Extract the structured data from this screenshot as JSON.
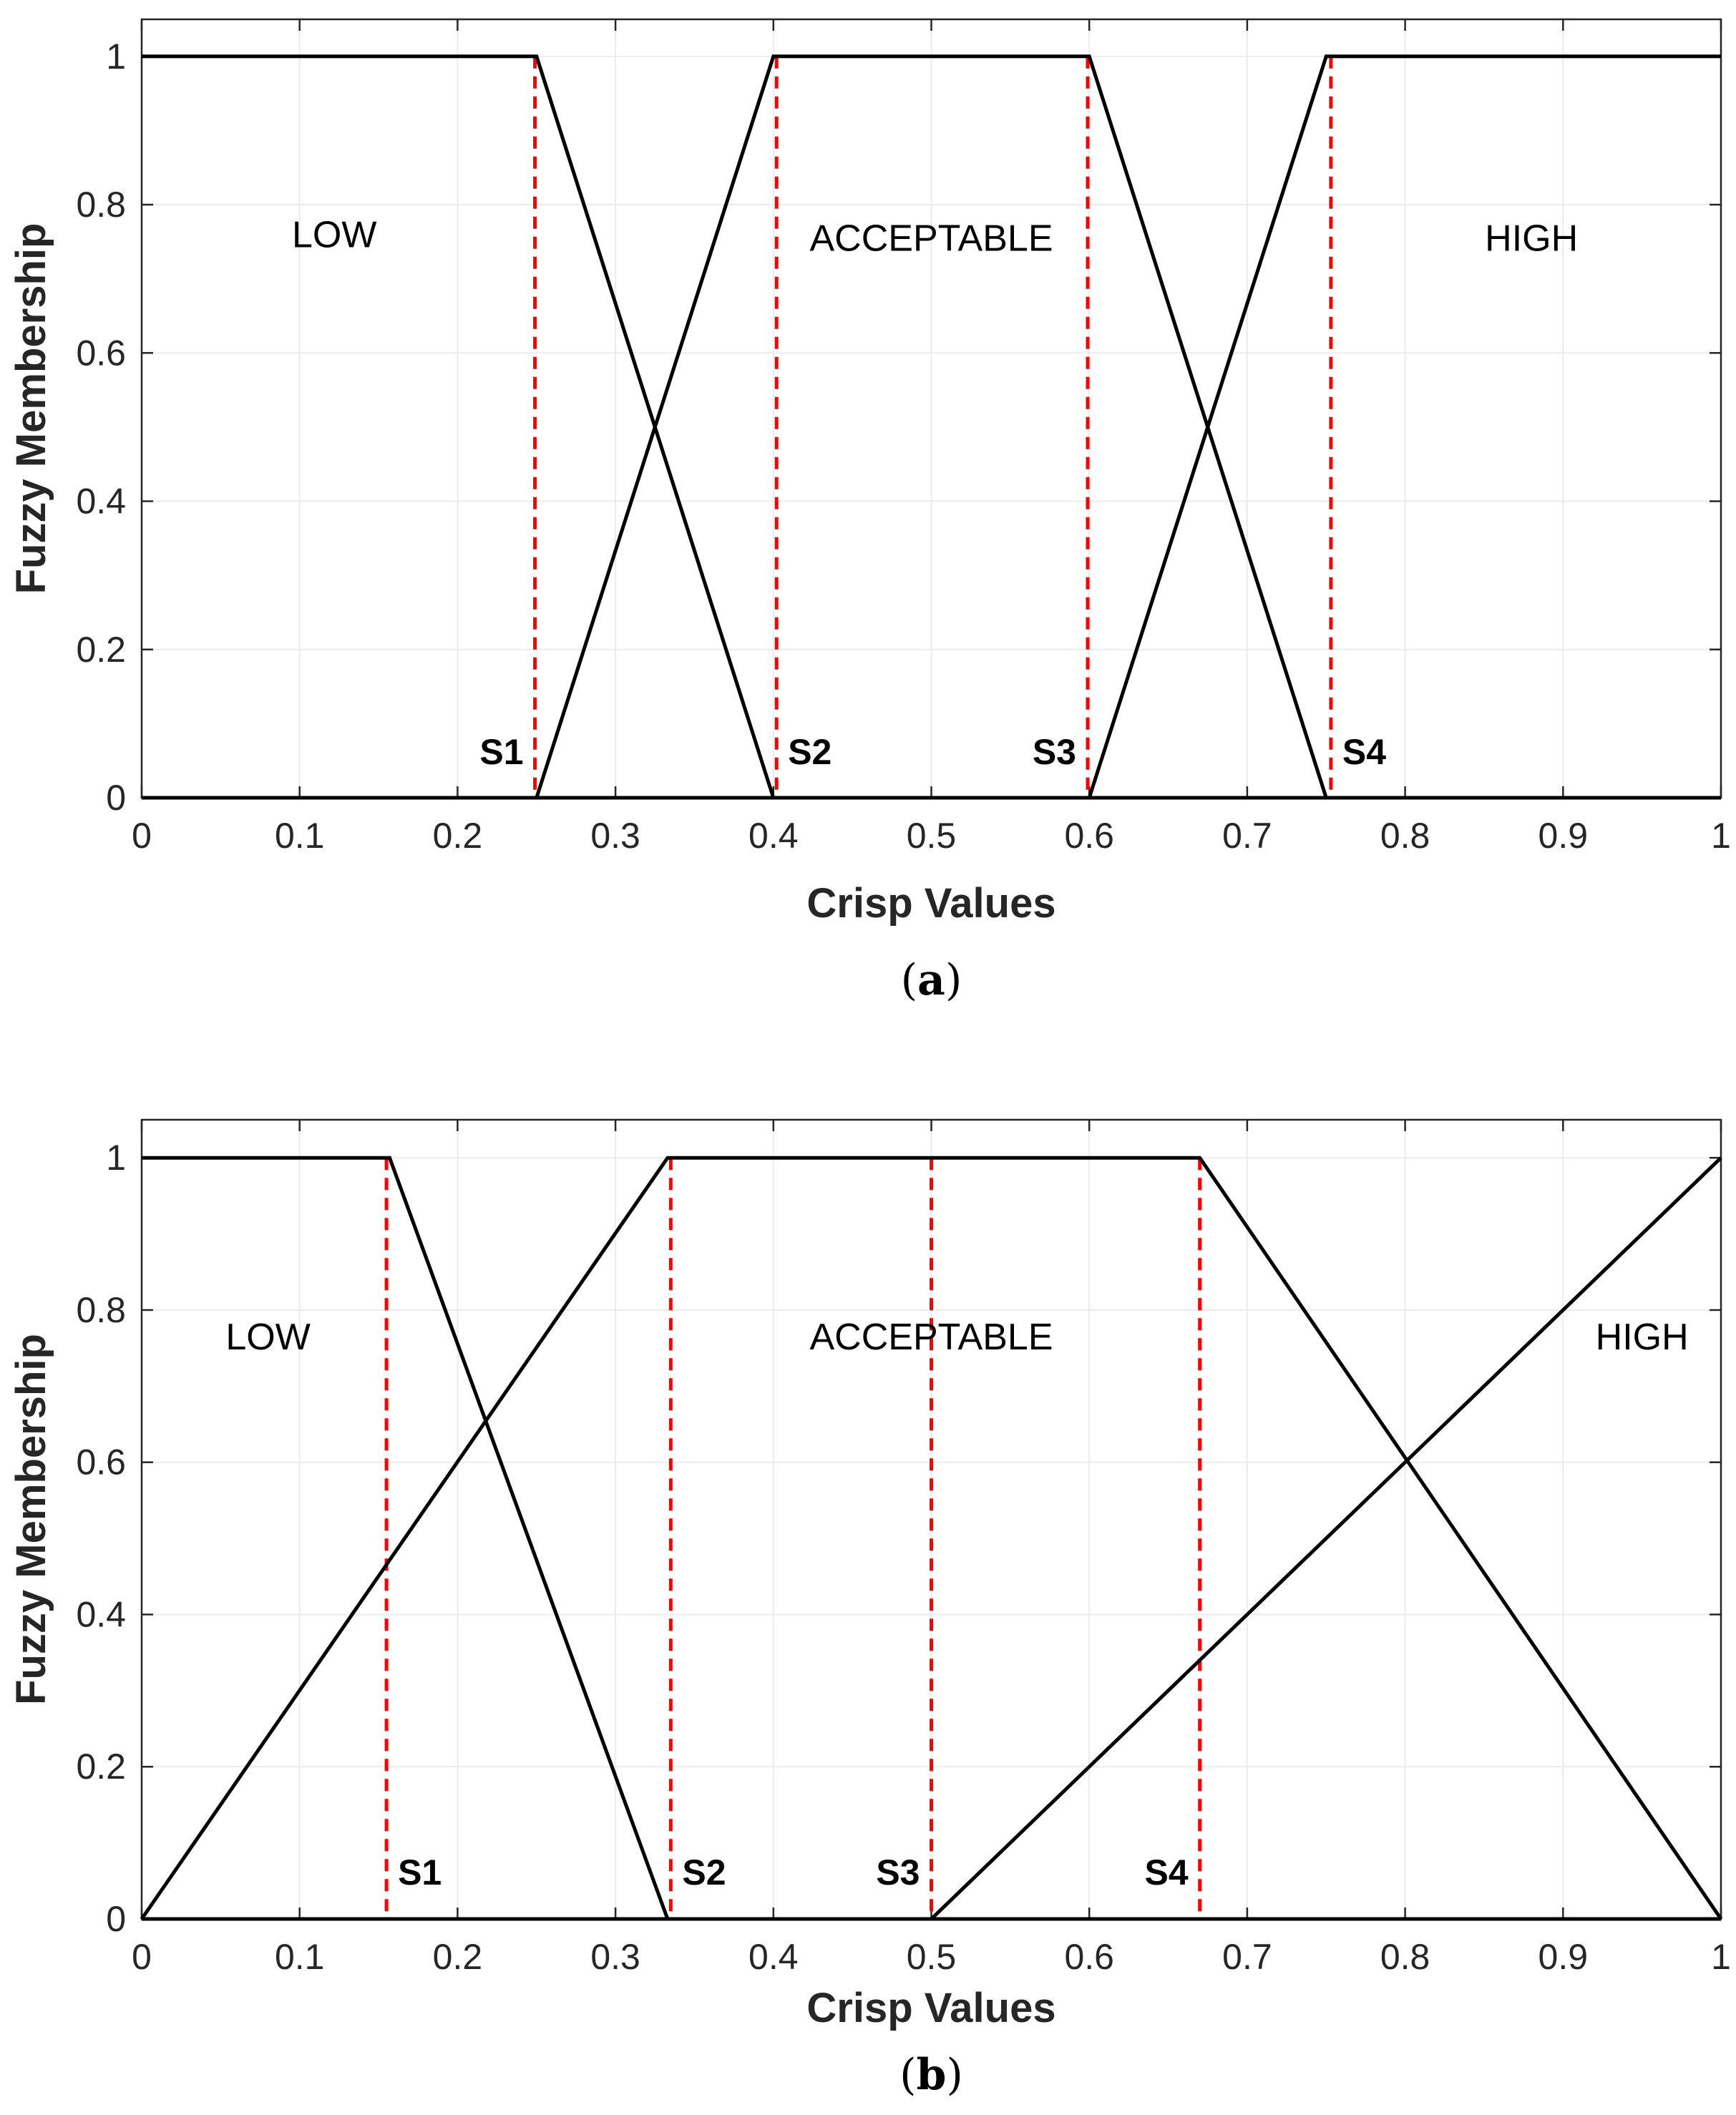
{
  "chart_data": [
    {
      "type": "line",
      "panel": "(a)",
      "xlabel": "Crisp Values",
      "ylabel": "Fuzzy Membership",
      "xlim": [
        0,
        1
      ],
      "ylim": [
        0,
        1.05
      ],
      "xticks": [
        "0",
        "0.1",
        "0.2",
        "0.3",
        "0.4",
        "0.5",
        "0.6",
        "0.7",
        "0.8",
        "0.9",
        "1"
      ],
      "yticks": [
        "0",
        "0.2",
        "0.4",
        "0.6",
        "0.8",
        "1"
      ],
      "grid": true,
      "series": [
        {
          "name": "LOW",
          "x": [
            0,
            0.25,
            0.4,
            1
          ],
          "y": [
            1,
            1,
            0,
            0
          ]
        },
        {
          "name": "ACCEPTABLE",
          "x": [
            0,
            0.25,
            0.4,
            0.6,
            0.75,
            1
          ],
          "y": [
            0,
            0,
            1,
            1,
            0,
            0
          ]
        },
        {
          "name": "HIGH",
          "x": [
            0,
            0.6,
            0.75,
            1
          ],
          "y": [
            0,
            0,
            1,
            1
          ]
        }
      ],
      "region_labels": [
        {
          "text": "LOW",
          "x": 0.122,
          "y": 0.76
        },
        {
          "text": "ACCEPTABLE",
          "x": 0.5,
          "y": 0.755
        },
        {
          "text": "HIGH",
          "x": 0.88,
          "y": 0.755
        }
      ],
      "splits": [
        {
          "label": "S1",
          "x": 0.249,
          "label_side": "left"
        },
        {
          "label": "S2",
          "x": 0.402,
          "label_side": "right"
        },
        {
          "label": "S3",
          "x": 0.599,
          "label_side": "left"
        },
        {
          "label": "S4",
          "x": 0.753,
          "label_side": "right"
        }
      ]
    },
    {
      "type": "line",
      "panel": "(b)",
      "xlabel": "Crisp Values",
      "ylabel": "Fuzzy Membership",
      "xlim": [
        0,
        1
      ],
      "ylim": [
        0,
        1.05
      ],
      "xticks": [
        "0",
        "0.1",
        "0.2",
        "0.3",
        "0.4",
        "0.5",
        "0.6",
        "0.7",
        "0.8",
        "0.9",
        "1"
      ],
      "yticks": [
        "0",
        "0.2",
        "0.4",
        "0.6",
        "0.8",
        "1"
      ],
      "grid": true,
      "series": [
        {
          "name": "LOW",
          "x": [
            0,
            0.157,
            0.333,
            1
          ],
          "y": [
            1,
            1,
            0,
            0
          ]
        },
        {
          "name": "ACCEPTABLE",
          "x": [
            0,
            0.333,
            0.67,
            1
          ],
          "y": [
            0,
            1,
            1,
            0
          ]
        },
        {
          "name": "HIGH",
          "x": [
            0,
            0.5,
            1
          ],
          "y": [
            0,
            0,
            1
          ]
        }
      ],
      "region_labels": [
        {
          "text": "LOW",
          "x": 0.08,
          "y": 0.765
        },
        {
          "text": "ACCEPTABLE",
          "x": 0.5,
          "y": 0.765
        },
        {
          "text": "HIGH",
          "x": 0.95,
          "y": 0.765
        }
      ],
      "splits": [
        {
          "label": "S1",
          "x": 0.155,
          "label_side": "right"
        },
        {
          "label": "S2",
          "x": 0.335,
          "label_side": "right"
        },
        {
          "label": "S3",
          "x": 0.5,
          "label_side": "left"
        },
        {
          "label": "S4",
          "x": 0.67,
          "label_side": "left"
        }
      ]
    }
  ],
  "colors": {
    "membership_line": "#000000",
    "split_line": "#ff0000",
    "grid": "#ebebeb",
    "axes": "#262626"
  }
}
